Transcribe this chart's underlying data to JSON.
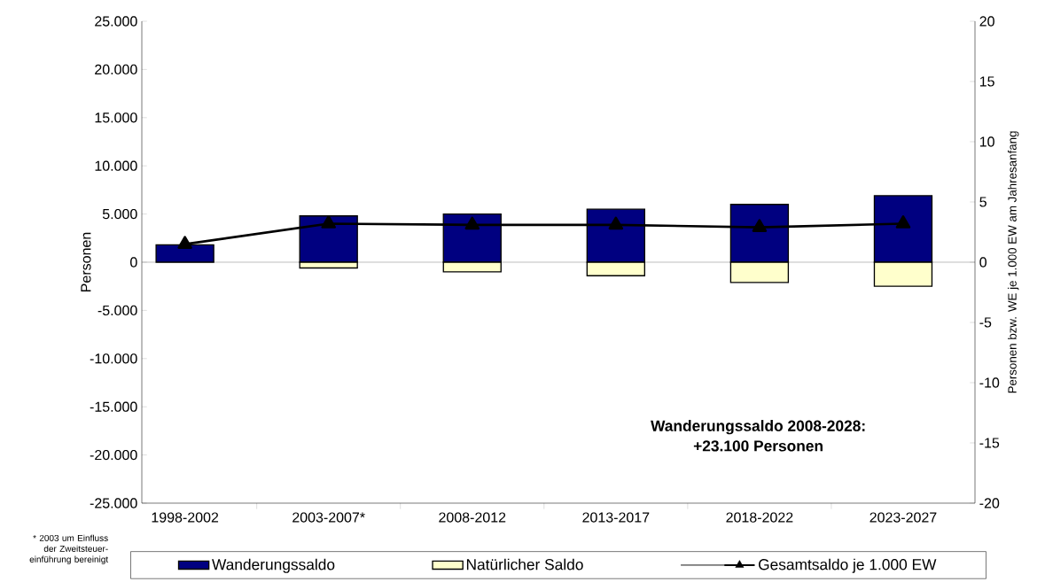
{
  "chart_data": {
    "type": "bar",
    "stacked": true,
    "ylabel": "Personen",
    "y2label": "Personen bzw. WE je 1.000 EW am Jahresanfang",
    "categories": [
      "1998-2002",
      "2003-2007*",
      "2008-2012",
      "2013-2017",
      "2018-2022",
      "2023-2027"
    ],
    "series": [
      {
        "name": "Wanderungssaldo",
        "color": "#000080",
        "values": [
          1800,
          4800,
          5000,
          5500,
          6000,
          6900
        ]
      },
      {
        "name": "Natürlicher Saldo",
        "color": "#ffffcc",
        "values": [
          null,
          -600,
          -1000,
          -1400,
          -2100,
          -2500
        ]
      },
      {
        "name": "Gesamtsaldo je 1.000 EW",
        "type": "line",
        "axis": "y2",
        "color": "#000000",
        "marker": "triangle",
        "values": [
          1.5,
          3.2,
          3.1,
          3.1,
          2.9,
          3.2
        ]
      }
    ],
    "ylim": [
      -25000,
      25000
    ],
    "yticks": [
      {
        "value": -25000,
        "label": "-25.000"
      },
      {
        "value": -20000,
        "label": "-20.000"
      },
      {
        "value": -15000,
        "label": "-15.000"
      },
      {
        "value": -10000,
        "label": "-10.000"
      },
      {
        "value": -5000,
        "label": "-5.000"
      },
      0,
      {
        "value": 5000,
        "label": "5.000"
      },
      {
        "value": 10000,
        "label": "10.000"
      },
      {
        "value": 15000,
        "label": "15.000"
      },
      {
        "value": 20000,
        "label": "20.000"
      },
      {
        "value": 25000,
        "label": "25.000"
      }
    ],
    "y2lim": [
      -20,
      20
    ],
    "y2ticks": [
      -20,
      -15,
      -10,
      -5,
      0,
      5,
      10,
      15,
      20
    ],
    "grid": false,
    "ref_lines": [
      {
        "axis": "y",
        "value": 0,
        "color": "#808080"
      }
    ],
    "legend": "bottom",
    "annotations": [
      "* 2003 um Einfluss der Zweitsteuer-einführung bereinigt",
      "**Wanderungssaldo 2008-2028:**",
      "**+23.100 Personen**"
    ]
  }
}
